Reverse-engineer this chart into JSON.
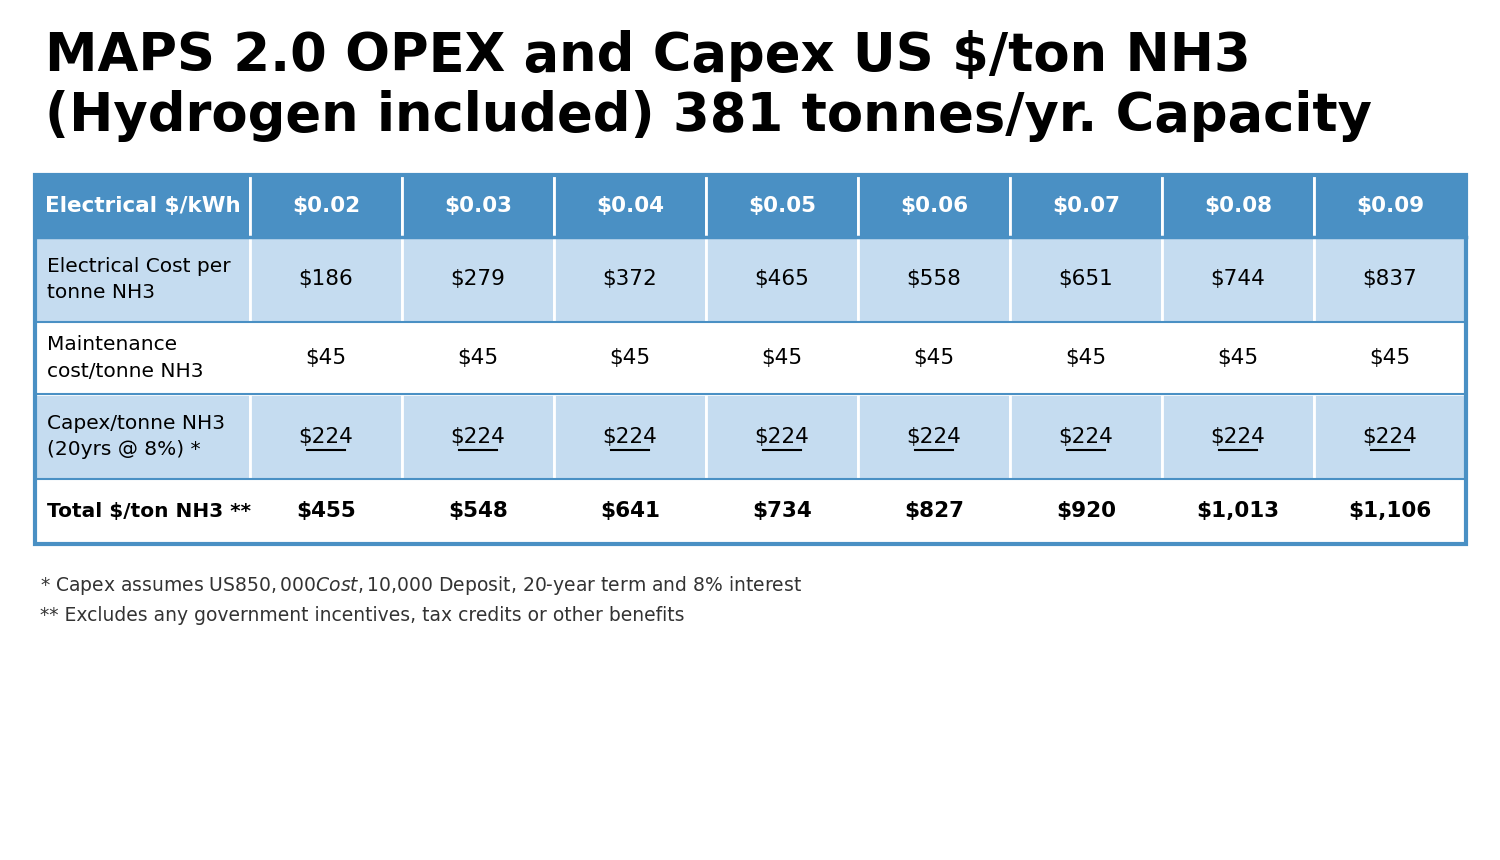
{
  "title_line1": "MAPS 2.0 OPEX and Capex US $/ton NH3",
  "title_line2": "(Hydrogen included) 381 tonnes/yr. Capacity",
  "header_row": [
    "Electrical $/kWh",
    "$0.02",
    "$0.03",
    "$0.04",
    "$0.05",
    "$0.06",
    "$0.07",
    "$0.08",
    "$0.09"
  ],
  "rows": [
    {
      "label": "Electrical Cost per\ntonne NH3",
      "values": [
        "$186",
        "$279",
        "$372",
        "$465",
        "$558",
        "$651",
        "$744",
        "$837"
      ],
      "underline": false,
      "bold": false,
      "bg": "light"
    },
    {
      "label": "Maintenance\ncost/tonne NH3",
      "values": [
        "$45",
        "$45",
        "$45",
        "$45",
        "$45",
        "$45",
        "$45",
        "$45"
      ],
      "underline": false,
      "bold": false,
      "bg": "white"
    },
    {
      "label": "Capex/tonne NH3\n(20yrs @ 8%) *",
      "values": [
        "$224",
        "$224",
        "$224",
        "$224",
        "$224",
        "$224",
        "$224",
        "$224"
      ],
      "underline": true,
      "bold": false,
      "bg": "light"
    },
    {
      "label": "Total $/ton NH3 **",
      "values": [
        "$455",
        "$548",
        "$641",
        "$734",
        "$827",
        "$920",
        "$1,013",
        "$1,106"
      ],
      "underline": false,
      "bold": true,
      "bg": "white"
    }
  ],
  "footnotes": [
    "* Capex assumes US$850,000 Cost, $10,000 Deposit, 20-year term and 8% interest",
    "** Excludes any government incentives, tax credits or other benefits"
  ],
  "header_bg": "#4A90C4",
  "header_text": "#FFFFFF",
  "light_bg": "#C5DCF0",
  "white_bg": "#FFFFFF",
  "border_color": "#4A90C4",
  "title_color": "#000000",
  "body_text_color": "#000000",
  "footnote_color": "#333333",
  "fig_width": 15.0,
  "fig_height": 8.6,
  "dpi": 100
}
